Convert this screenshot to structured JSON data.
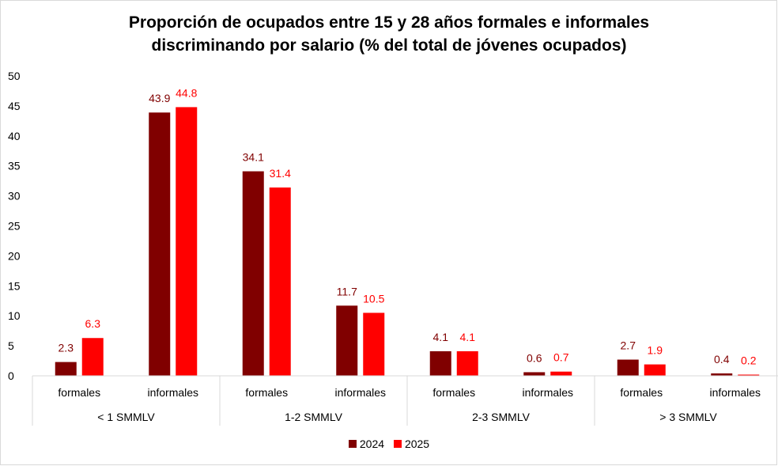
{
  "chart_data": {
    "type": "bar",
    "title": "Proporción de ocupados entre 15 y 28 años formales e informales discriminando por salario (% del total de jóvenes ocupados)",
    "title_lines": [
      "Proporción de ocupados entre 15 y 28 años formales e informales",
      "discriminando por salario (% del total de jóvenes ocupados)"
    ],
    "categories": [
      "formales",
      "informales",
      "formales",
      "informales",
      "formales",
      "informales",
      "formales",
      "informales"
    ],
    "groups": [
      {
        "label": "< 1 SMMLV",
        "span": 2
      },
      {
        "label": "1-2 SMMLV",
        "span": 2
      },
      {
        "label": "2-3 SMMLV",
        "span": 2
      },
      {
        "label": "> 3 SMMLV",
        "span": 2
      }
    ],
    "series": [
      {
        "name": "2024",
        "color": "#800000",
        "values": [
          2.3,
          43.9,
          34.1,
          11.7,
          4.1,
          0.6,
          2.7,
          0.4
        ],
        "labels": [
          "2.3",
          "43.9",
          "34.1",
          "11.7",
          "4.1",
          "0.6",
          "2.7",
          "0.4"
        ]
      },
      {
        "name": "2025",
        "color": "#ff0000",
        "values": [
          6.3,
          44.8,
          31.4,
          10.5,
          4.1,
          0.7,
          1.9,
          0.2
        ],
        "labels": [
          "6.3",
          "44.8",
          "31.4",
          "10.5",
          "4.1",
          "0.7",
          "1.9",
          "0.2"
        ]
      }
    ],
    "y_ticks": [
      "0",
      "5",
      "10",
      "15",
      "20",
      "25",
      "30",
      "35",
      "40",
      "45",
      "50"
    ],
    "ylim": [
      0,
      50
    ],
    "xlabel": "",
    "ylabel": "",
    "grid": false,
    "legend_position": "bottom"
  }
}
